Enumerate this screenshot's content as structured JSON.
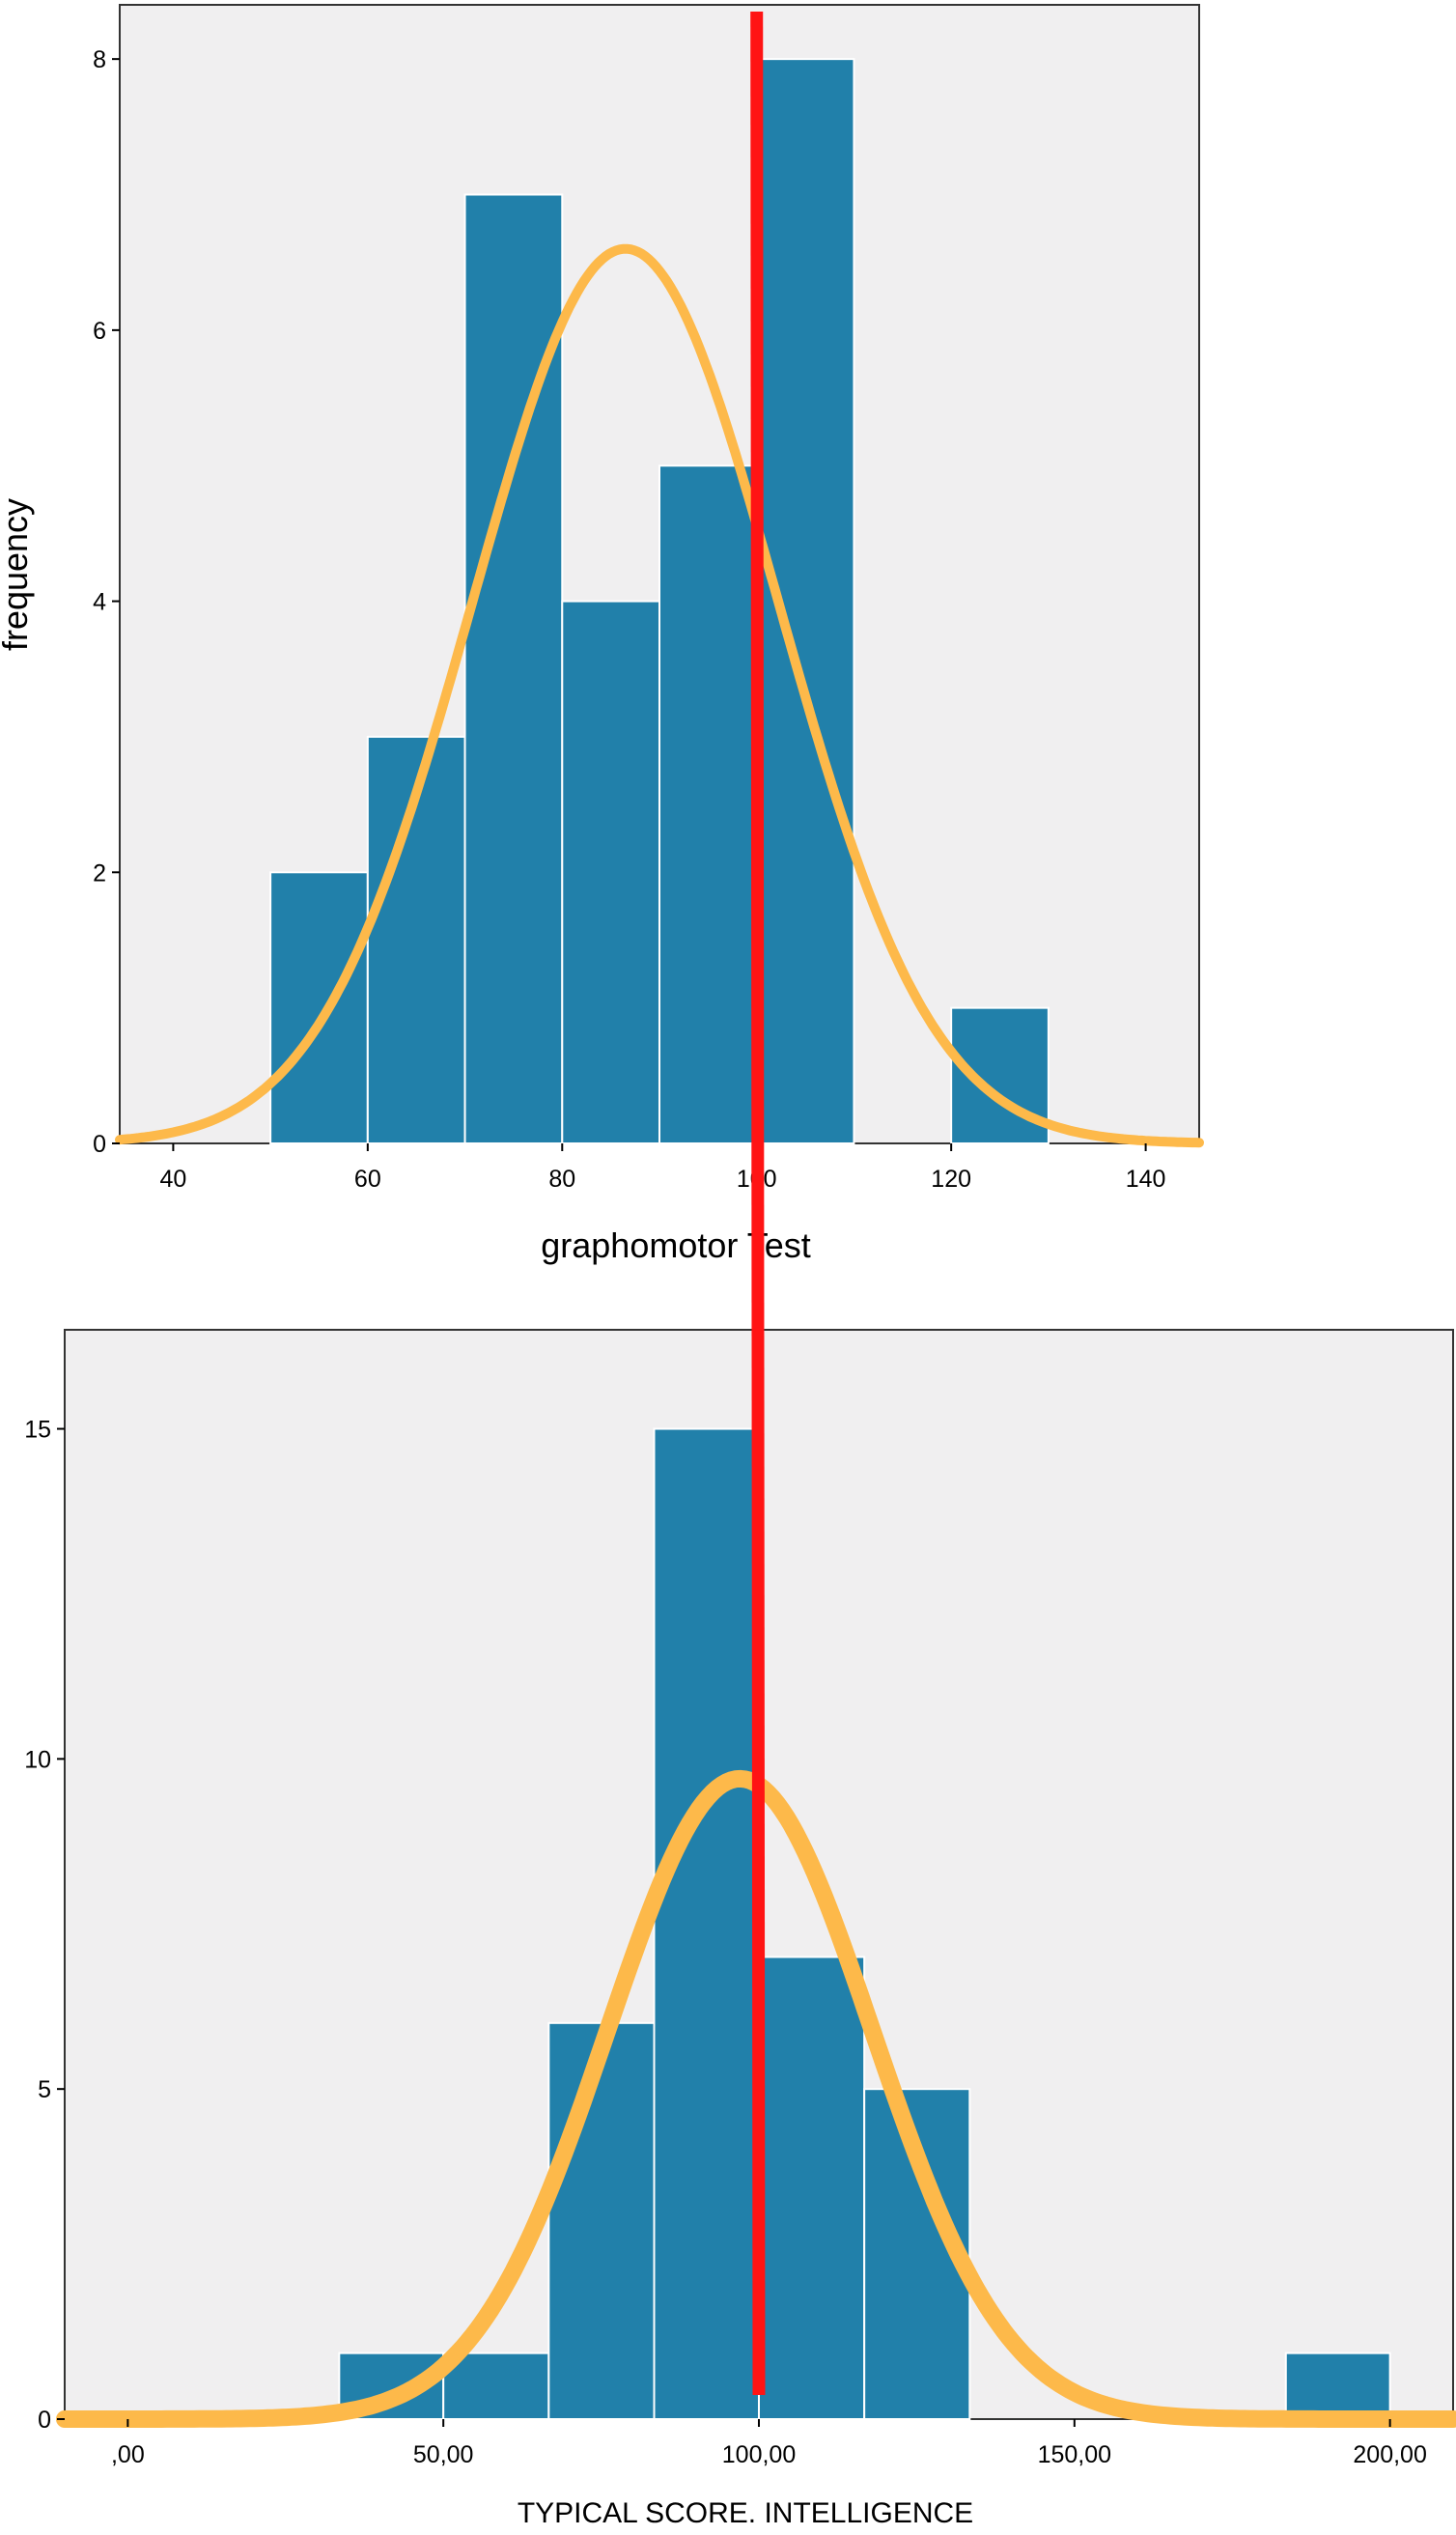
{
  "chart_data": [
    {
      "type": "bar",
      "subtype": "histogram",
      "xlabel": "graphomotor Test",
      "ylabel": "frequency",
      "xlim": [
        34.5,
        145.5
      ],
      "ylim": [
        0,
        8.4
      ],
      "x_ticks": [
        40,
        60,
        80,
        100,
        120,
        140
      ],
      "x_tick_labels": [
        "40",
        "60",
        "80",
        "100",
        "120",
        "140"
      ],
      "y_ticks": [
        0,
        2,
        4,
        6,
        8
      ],
      "y_tick_labels": [
        "0",
        "2",
        "4",
        "6",
        "8"
      ],
      "bins": [
        {
          "from": 50,
          "to": 60,
          "count": 2
        },
        {
          "from": 60,
          "to": 70,
          "count": 3
        },
        {
          "from": 70,
          "to": 80,
          "count": 7
        },
        {
          "from": 80,
          "to": 90,
          "count": 4
        },
        {
          "from": 90,
          "to": 100,
          "count": 5
        },
        {
          "from": 100,
          "to": 110,
          "count": 8
        },
        {
          "from": 120,
          "to": 130,
          "count": 1
        }
      ],
      "normal_curve": {
        "mean": 86.5,
        "sd": 15.7,
        "peak": 6.6,
        "color": "#fdb94a"
      },
      "grid": false,
      "legend": "none"
    },
    {
      "type": "bar",
      "subtype": "histogram",
      "xlabel": "TYPICAL SCORE. INTELLIGENCE",
      "ylabel": "",
      "xlim": [
        -10,
        210
      ],
      "ylim": [
        0,
        16.5
      ],
      "x_ticks": [
        0,
        50,
        100,
        150,
        200
      ],
      "x_tick_labels": [
        ",00",
        "50,00",
        "100,00",
        "150,00",
        "200,00"
      ],
      "y_ticks": [
        0,
        5,
        10,
        15
      ],
      "y_tick_labels": [
        "0",
        "5",
        "10",
        "15"
      ],
      "bins": [
        {
          "from": 33.5,
          "to": 50,
          "count": 1
        },
        {
          "from": 50,
          "to": 66.7,
          "count": 1
        },
        {
          "from": 66.7,
          "to": 83.4,
          "count": 6
        },
        {
          "from": 83.4,
          "to": 100,
          "count": 15
        },
        {
          "from": 100,
          "to": 116.7,
          "count": 7
        },
        {
          "from": 116.7,
          "to": 133.4,
          "count": 5
        },
        {
          "from": 183.5,
          "to": 200,
          "count": 1
        }
      ],
      "normal_curve": {
        "mean": 97,
        "sd": 21,
        "peak": 9.7,
        "color": "#fdb94a"
      },
      "grid": false,
      "legend": "none"
    }
  ],
  "reference_line": {
    "x_value": 100,
    "color": "#ff1414"
  }
}
